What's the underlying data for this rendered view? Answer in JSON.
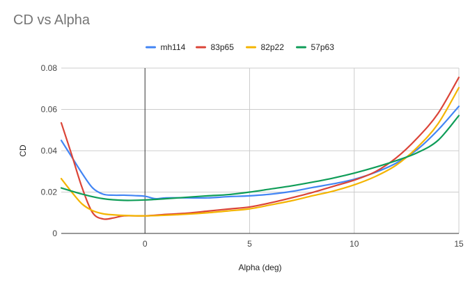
{
  "chart_data": {
    "type": "line",
    "title": "CD vs Alpha",
    "xlabel": "Alpha (deg)",
    "ylabel": "CD",
    "xlim": [
      -4,
      15
    ],
    "ylim": [
      0,
      0.08
    ],
    "x_ticks": [
      0,
      5,
      10,
      15
    ],
    "y_ticks": [
      0,
      0.02,
      0.04,
      0.06,
      0.08
    ],
    "x_tick_labels": [
      "0",
      "5",
      "10",
      "15"
    ],
    "y_tick_labels": [
      "0",
      "0.02",
      "0.04",
      "0.06",
      "0.08"
    ],
    "grid": true,
    "legend_position": "top",
    "series": [
      {
        "name": "mh114",
        "color": "#4285F4",
        "x": [
          -4,
          -3.5,
          -3,
          -2.5,
          -2,
          -1.5,
          -1,
          -0.5,
          0,
          0.5,
          1,
          2,
          3,
          4,
          5,
          6,
          7,
          8,
          9,
          10,
          11,
          12,
          13,
          14,
          15
        ],
        "y": [
          0.045,
          0.037,
          0.029,
          0.022,
          0.019,
          0.0185,
          0.0185,
          0.0183,
          0.018,
          0.0168,
          0.0172,
          0.0172,
          0.0172,
          0.0178,
          0.0182,
          0.019,
          0.0203,
          0.0222,
          0.024,
          0.0262,
          0.0295,
          0.034,
          0.0405,
          0.05,
          0.0615
        ]
      },
      {
        "name": "83p65",
        "color": "#DB4437",
        "x": [
          -4,
          -3.5,
          -3,
          -2.5,
          -2,
          -1.5,
          -1,
          0,
          1,
          2,
          3,
          4,
          5,
          6,
          7,
          8,
          9,
          10,
          11,
          12,
          13,
          14,
          15
        ],
        "y": [
          0.0535,
          0.038,
          0.022,
          0.01,
          0.007,
          0.0075,
          0.0085,
          0.0085,
          0.0092,
          0.0098,
          0.0108,
          0.0118,
          0.0128,
          0.0148,
          0.0172,
          0.0198,
          0.0228,
          0.0258,
          0.0298,
          0.0365,
          0.046,
          0.058,
          0.0755
        ]
      },
      {
        "name": "82p22",
        "color": "#F4B400",
        "x": [
          -4,
          -3.5,
          -3,
          -2.5,
          -2,
          -1.5,
          -1,
          0,
          1,
          2,
          3,
          4,
          5,
          6,
          7,
          8,
          9,
          10,
          11,
          12,
          13,
          14,
          15
        ],
        "y": [
          0.0265,
          0.02,
          0.0142,
          0.011,
          0.0095,
          0.009,
          0.0087,
          0.0085,
          0.0088,
          0.0093,
          0.01,
          0.0109,
          0.0119,
          0.0138,
          0.0158,
          0.0182,
          0.0205,
          0.0235,
          0.0275,
          0.033,
          0.0415,
          0.053,
          0.0705
        ]
      },
      {
        "name": "57p63",
        "color": "#0F9D58",
        "x": [
          -4,
          -3,
          -2,
          -1,
          0,
          1,
          2,
          3,
          4,
          5,
          6,
          7,
          8,
          9,
          10,
          11,
          12,
          13,
          14,
          15
        ],
        "y": [
          0.022,
          0.019,
          0.0168,
          0.016,
          0.0162,
          0.0168,
          0.0175,
          0.0182,
          0.0188,
          0.02,
          0.0215,
          0.023,
          0.0248,
          0.0268,
          0.0292,
          0.032,
          0.0352,
          0.039,
          0.045,
          0.057
        ]
      }
    ]
  }
}
